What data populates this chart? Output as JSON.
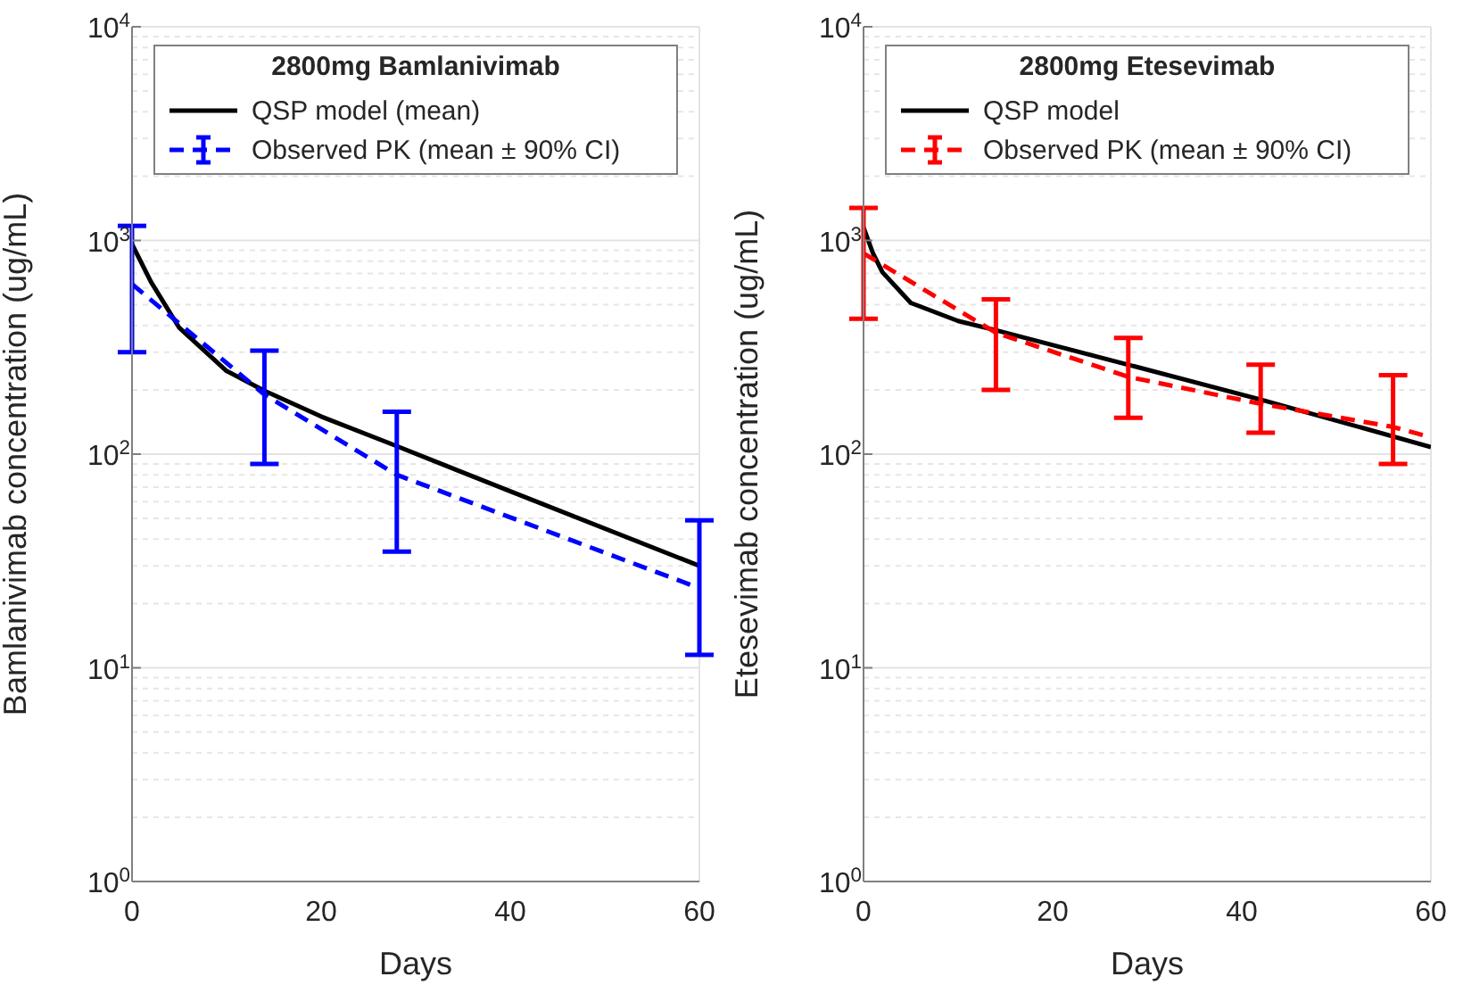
{
  "chart_data": [
    {
      "type": "line",
      "legend_title": "2800mg Bamlanivimab",
      "xlabel": "Days",
      "ylabel": "Bamlanivimab concentration (ug/mL)",
      "log": "y",
      "grid": true,
      "legend": "top",
      "xlim": [
        0,
        60
      ],
      "xticks": [
        0,
        20,
        40,
        60
      ],
      "ylim": [
        1,
        10000
      ],
      "yticks": [
        {
          "value": 1,
          "label": "10$^{0}$"
        },
        {
          "value": 10,
          "label": "10$^{1}$"
        },
        {
          "value": 100,
          "label": "10$^{2}$"
        },
        {
          "value": 1000,
          "label": "10$^{3}$"
        },
        {
          "value": 10000,
          "label": "10$^{4}$"
        }
      ],
      "series": [
        {
          "name": "QSP model (mean)",
          "color": "#000000",
          "line_style": "solid",
          "marker": "none",
          "x": [
            0,
            2,
            5,
            10,
            14,
            20,
            28,
            40,
            60
          ],
          "values": [
            960,
            640,
            390,
            245,
            198,
            150,
            109,
            67,
            30
          ]
        },
        {
          "name": "Observed PK (mean ± 90% CI)",
          "color": "#0000ff",
          "line_style": "dashed",
          "marker": "none",
          "x": [
            0,
            14,
            28,
            60
          ],
          "values": [
            625,
            190,
            80,
            23.6
          ],
          "errors": [
            [
              300,
              1170
            ],
            [
              90,
              305
            ],
            [
              35,
              158
            ],
            [
              11.5,
              49
            ]
          ]
        }
      ]
    },
    {
      "type": "line",
      "legend_title": "2800mg Etesevimab",
      "xlabel": "Days",
      "ylabel": "Etesevimab concentration (ug/mL)",
      "log": "y",
      "grid": true,
      "legend": "top",
      "xlim": [
        0,
        60
      ],
      "xticks": [
        0,
        20,
        40,
        60
      ],
      "ylim": [
        1,
        10000
      ],
      "yticks": [
        {
          "value": 1,
          "label": "10$^{0}$"
        },
        {
          "value": 10,
          "label": "10$^{1}$"
        },
        {
          "value": 100,
          "label": "10$^{2}$"
        },
        {
          "value": 1000,
          "label": "10$^{3}$"
        },
        {
          "value": 10000,
          "label": "10$^{4}$"
        }
      ],
      "series": [
        {
          "name": "QSP model",
          "color": "#000000",
          "line_style": "solid",
          "marker": "none",
          "x": [
            0,
            1,
            2,
            5,
            10,
            14,
            28,
            42,
            60
          ],
          "values": [
            1150,
            870,
            710,
            510,
            420,
            380,
            262,
            180,
            108
          ]
        },
        {
          "name": "Observed PK (mean ± 90% CI)",
          "color": "#ff0000",
          "line_style": "dashed",
          "marker": "none",
          "x": [
            0,
            14,
            28,
            42,
            56,
            60
          ],
          "values": [
            870,
            370,
            230,
            172,
            134,
            120
          ],
          "errors": [
            [
              430,
              1420
            ],
            [
              200,
              530
            ],
            [
              148,
              350
            ],
            [
              126,
              262
            ],
            [
              90,
              234
            ],
            null
          ]
        }
      ]
    }
  ]
}
